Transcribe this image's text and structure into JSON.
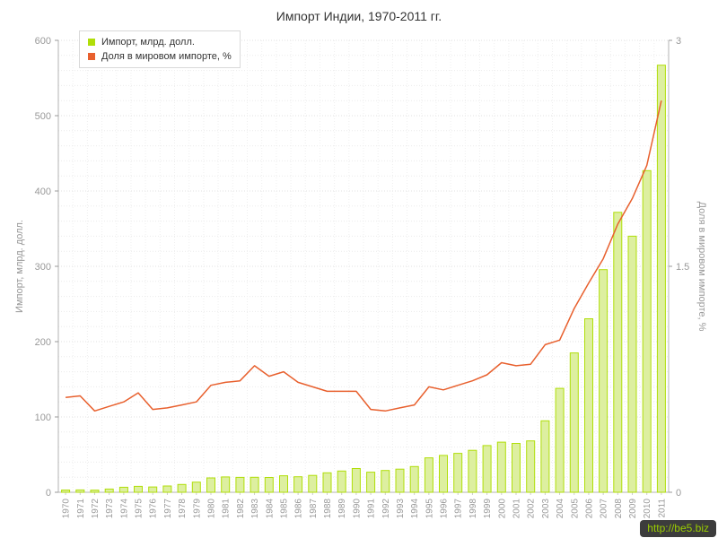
{
  "page": {
    "title": "Импорт Индии, 1970-2011 гг.",
    "watermark": "http://be5.biz",
    "watermark_bg": "#3c3c3c",
    "watermark_color": "#99cc00"
  },
  "legend": {
    "items": [
      {
        "label": "Импорт, млрд. долл.",
        "color": "#b0de09"
      },
      {
        "label": "Доля в мировом импорте, %",
        "color": "#e8602e"
      }
    ]
  },
  "chart_data": {
    "type": "bar+line",
    "title": "Импорт Индии, 1970-2011 гг.",
    "legend_position": "top-left",
    "grid": {
      "horizontal_step": 20,
      "style": "dotted"
    },
    "categories": [
      "1970",
      "1971",
      "1972",
      "1973",
      "1974",
      "1975",
      "1976",
      "1977",
      "1978",
      "1979",
      "1980",
      "1981",
      "1982",
      "1983",
      "1984",
      "1985",
      "1986",
      "1987",
      "1988",
      "1989",
      "1990",
      "1991",
      "1992",
      "1993",
      "1994",
      "1995",
      "1996",
      "1997",
      "1998",
      "1999",
      "2000",
      "2001",
      "2002",
      "2003",
      "2004",
      "2005",
      "2006",
      "2007",
      "2008",
      "2009",
      "2010",
      "2011"
    ],
    "series": [
      {
        "name": "Импорт, млрд. долл.",
        "type": "bar",
        "axis": "left",
        "color": "#b0de09",
        "fill": "#ddefa0",
        "values": [
          3.0,
          3.1,
          2.8,
          4.3,
          6.7,
          7.9,
          7.0,
          8.3,
          10.4,
          13.4,
          19.1,
          20.4,
          19.8,
          19.9,
          19.6,
          21.9,
          20.6,
          22.4,
          25.8,
          28.2,
          31.5,
          26.7,
          28.9,
          30.7,
          34.2,
          45.7,
          48.9,
          51.7,
          55.7,
          62.0,
          66.5,
          64.9,
          68.2,
          94.9,
          138.0,
          185.0,
          230.3,
          295.6,
          371.7,
          340.0,
          427.0,
          567.0
        ]
      },
      {
        "name": "Доля в мировом импорте, %",
        "type": "line",
        "axis": "right",
        "color": "#e8602e",
        "values": [
          0.63,
          0.64,
          0.54,
          0.57,
          0.6,
          0.66,
          0.55,
          0.56,
          0.58,
          0.6,
          0.71,
          0.73,
          0.74,
          0.84,
          0.77,
          0.8,
          0.73,
          0.7,
          0.67,
          0.67,
          0.67,
          0.55,
          0.54,
          0.56,
          0.58,
          0.7,
          0.68,
          0.71,
          0.74,
          0.78,
          0.86,
          0.84,
          0.85,
          0.98,
          1.01,
          1.22,
          1.39,
          1.55,
          1.78,
          1.95,
          2.17,
          2.6
        ]
      }
    ],
    "left_axis": {
      "label": "Импорт, млрд. долл.",
      "min": 0,
      "max": 600,
      "ticks": [
        0,
        100,
        200,
        300,
        400,
        500,
        600
      ]
    },
    "right_axis": {
      "label": "Доля в мировом импорте, %",
      "min": 0,
      "max": 3,
      "ticks": [
        0,
        1.5,
        3
      ]
    }
  }
}
